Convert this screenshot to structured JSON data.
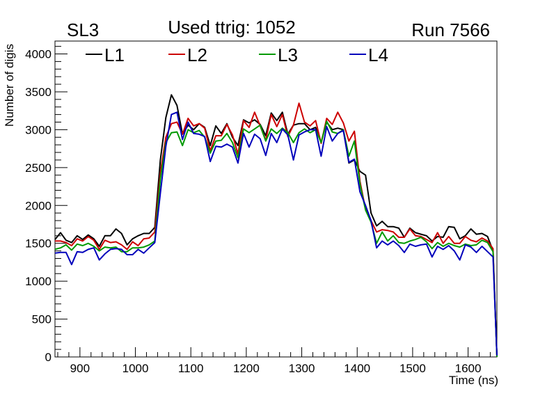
{
  "header": {
    "left_label": "SL3",
    "center_label": "Used ttrig: 1052",
    "right_label": "Run 7566"
  },
  "chart_data": {
    "type": "line",
    "title": "Used ttrig: 1052",
    "xlabel": "Time (ns)",
    "ylabel": "Number of digis",
    "xlim": [
      855,
      1652
    ],
    "ylim": [
      0,
      4170
    ],
    "xticks": [
      900,
      1000,
      1100,
      1200,
      1300,
      1400,
      1500,
      1600
    ],
    "yticks": [
      0,
      500,
      1000,
      1500,
      2000,
      2500,
      3000,
      3500,
      4000
    ],
    "grid": false,
    "legend_position": "top",
    "x": [
      855,
      865,
      875,
      885,
      895,
      905,
      915,
      925,
      935,
      945,
      955,
      965,
      975,
      985,
      995,
      1005,
      1015,
      1025,
      1035,
      1045,
      1055,
      1065,
      1075,
      1085,
      1095,
      1105,
      1115,
      1125,
      1135,
      1145,
      1155,
      1165,
      1175,
      1185,
      1195,
      1205,
      1215,
      1225,
      1235,
      1245,
      1255,
      1265,
      1275,
      1285,
      1295,
      1305,
      1315,
      1325,
      1335,
      1345,
      1355,
      1365,
      1375,
      1385,
      1395,
      1405,
      1415,
      1425,
      1435,
      1445,
      1455,
      1465,
      1475,
      1485,
      1495,
      1505,
      1515,
      1525,
      1535,
      1545,
      1555,
      1565,
      1575,
      1585,
      1595,
      1605,
      1615,
      1625,
      1635,
      1645,
      1652
    ],
    "series": [
      {
        "name": "L1",
        "color": "#000000",
        "values": [
          1550,
          1640,
          1540,
          1510,
          1600,
          1550,
          1610,
          1560,
          1460,
          1600,
          1600,
          1690,
          1630,
          1480,
          1560,
          1600,
          1630,
          1630,
          1710,
          2600,
          3160,
          3460,
          3320,
          2940,
          3060,
          3000,
          3080,
          3030,
          2790,
          3050,
          2950,
          3080,
          2900,
          2790,
          3130,
          3090,
          3130,
          3070,
          2920,
          3220,
          3120,
          3230,
          2940,
          3060,
          3080,
          3080,
          3000,
          3030,
          2830,
          3100,
          3000,
          3020,
          3000,
          2560,
          2600,
          2450,
          2400,
          1900,
          1730,
          1790,
          1720,
          1720,
          1700,
          1580,
          1700,
          1640,
          1620,
          1600,
          1530,
          1590,
          1580,
          1720,
          1710,
          1560,
          1600,
          1690,
          1620,
          1630,
          1590,
          1400,
          0
        ]
      },
      {
        "name": "L2",
        "color": "#cc0000",
        "values": [
          1530,
          1530,
          1510,
          1470,
          1560,
          1530,
          1590,
          1540,
          1420,
          1540,
          1510,
          1520,
          1480,
          1420,
          1520,
          1470,
          1560,
          1570,
          1650,
          2430,
          2900,
          3080,
          3100,
          2940,
          3150,
          3050,
          3080,
          3020,
          2720,
          2920,
          2920,
          3070,
          2930,
          2680,
          3120,
          3030,
          3230,
          3050,
          2860,
          3200,
          3040,
          3200,
          2910,
          3060,
          3350,
          3100,
          3050,
          3120,
          2820,
          3150,
          3070,
          3230,
          3090,
          2850,
          2980,
          2320,
          1950,
          1800,
          1650,
          1680,
          1670,
          1650,
          1580,
          1580,
          1690,
          1600,
          1590,
          1550,
          1510,
          1640,
          1500,
          1590,
          1500,
          1500,
          1590,
          1540,
          1520,
          1570,
          1530,
          1430,
          0
        ]
      },
      {
        "name": "L3",
        "color": "#009900",
        "values": [
          1420,
          1440,
          1480,
          1410,
          1490,
          1470,
          1500,
          1460,
          1400,
          1450,
          1440,
          1450,
          1390,
          1390,
          1440,
          1440,
          1450,
          1480,
          1530,
          2350,
          2830,
          2960,
          2970,
          2790,
          3000,
          2960,
          2990,
          2900,
          2690,
          2850,
          2860,
          2950,
          2830,
          2630,
          3010,
          2960,
          3010,
          3060,
          2850,
          3010,
          2950,
          3020,
          2960,
          2830,
          2960,
          3010,
          2960,
          3000,
          2830,
          3110,
          2970,
          2950,
          3000,
          2650,
          2850,
          2280,
          1940,
          1780,
          1500,
          1650,
          1530,
          1600,
          1510,
          1500,
          1530,
          1550,
          1580,
          1520,
          1430,
          1510,
          1460,
          1500,
          1470,
          1450,
          1490,
          1470,
          1480,
          1540,
          1510,
          1390,
          0
        ]
      },
      {
        "name": "L4",
        "color": "#0000bb",
        "values": [
          1370,
          1380,
          1380,
          1220,
          1390,
          1380,
          1420,
          1440,
          1280,
          1360,
          1420,
          1430,
          1420,
          1350,
          1350,
          1420,
          1370,
          1440,
          1510,
          2160,
          2780,
          3200,
          3230,
          2870,
          3100,
          2950,
          2940,
          2910,
          2580,
          2780,
          2770,
          2810,
          2770,
          2560,
          2950,
          2770,
          2940,
          2880,
          2660,
          2950,
          2830,
          3010,
          2930,
          2600,
          2930,
          2970,
          3000,
          3000,
          2650,
          3040,
          2850,
          2950,
          2990,
          2570,
          2610,
          2180,
          2000,
          1800,
          1440,
          1530,
          1480,
          1530,
          1470,
          1380,
          1490,
          1460,
          1480,
          1490,
          1320,
          1460,
          1420,
          1470,
          1400,
          1280,
          1480,
          1450,
          1380,
          1460,
          1390,
          1320,
          20
        ]
      }
    ]
  }
}
